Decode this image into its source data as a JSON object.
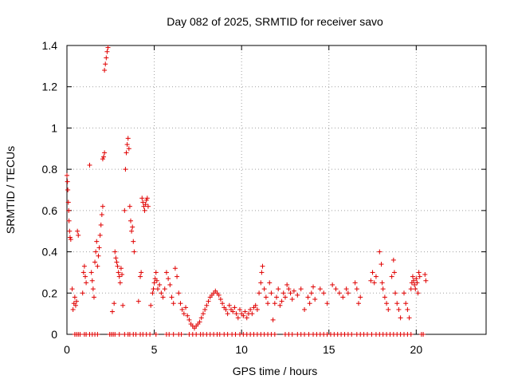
{
  "chart_data": {
    "type": "scatter",
    "title": "Day 082 of 2025, SRMTID for receiver savo",
    "xlabel": "GPS time / hours",
    "ylabel": "SRMTID / TECUs",
    "xlim": [
      0,
      24
    ],
    "ylim": [
      0,
      1.4
    ],
    "xticks": [
      0,
      5,
      10,
      15,
      20
    ],
    "xtick_labels": [
      "0",
      "5",
      "10",
      "15",
      "20"
    ],
    "yticks": [
      0,
      0.2,
      0.4,
      0.6,
      0.8,
      1,
      1.2,
      1.4
    ],
    "ytick_labels": [
      "0",
      "0.2",
      "0.4",
      "0.6",
      "0.8",
      "1",
      "1.2",
      "1.4"
    ],
    "grid": true,
    "marker": "plus",
    "marker_color": "#e00000",
    "series": [
      {
        "name": "SRMTID",
        "points": [
          [
            0.0,
            0.77
          ],
          [
            0.03,
            0.74
          ],
          [
            0.05,
            0.7
          ],
          [
            0.08,
            0.64
          ],
          [
            0.1,
            0.6
          ],
          [
            0.12,
            0.55
          ],
          [
            0.15,
            0.5
          ],
          [
            0.18,
            0.47
          ],
          [
            0.22,
            0.46
          ],
          [
            0.3,
            0.22
          ],
          [
            0.35,
            0.12
          ],
          [
            0.4,
            0.15
          ],
          [
            0.45,
            0.18
          ],
          [
            0.5,
            0.14
          ],
          [
            0.55,
            0.16
          ],
          [
            0.6,
            0.5
          ],
          [
            0.65,
            0.48
          ],
          [
            0.9,
            0.2
          ],
          [
            0.95,
            0.3
          ],
          [
            1.0,
            0.33
          ],
          [
            1.05,
            0.28
          ],
          [
            1.1,
            0.25
          ],
          [
            1.3,
            0.82
          ],
          [
            1.4,
            0.3
          ],
          [
            1.45,
            0.26
          ],
          [
            1.5,
            0.22
          ],
          [
            1.55,
            0.18
          ],
          [
            1.6,
            0.35
          ],
          [
            1.65,
            0.4
          ],
          [
            1.7,
            0.45
          ],
          [
            1.75,
            0.33
          ],
          [
            1.8,
            0.38
          ],
          [
            1.85,
            0.42
          ],
          [
            1.9,
            0.48
          ],
          [
            1.95,
            0.53
          ],
          [
            2.0,
            0.58
          ],
          [
            2.05,
            0.62
          ],
          [
            2.05,
            0.85
          ],
          [
            2.1,
            0.86
          ],
          [
            2.15,
            0.88
          ],
          [
            2.15,
            1.28
          ],
          [
            2.2,
            1.31
          ],
          [
            2.25,
            1.34
          ],
          [
            2.3,
            1.37
          ],
          [
            2.35,
            1.39
          ],
          [
            2.6,
            0.11
          ],
          [
            2.7,
            0.15
          ],
          [
            2.75,
            0.4
          ],
          [
            2.8,
            0.37
          ],
          [
            2.85,
            0.35
          ],
          [
            2.9,
            0.33
          ],
          [
            2.95,
            0.3
          ],
          [
            3.0,
            0.28
          ],
          [
            3.05,
            0.25
          ],
          [
            3.1,
            0.32
          ],
          [
            3.15,
            0.29
          ],
          [
            3.2,
            0.14
          ],
          [
            3.3,
            0.6
          ],
          [
            3.35,
            0.8
          ],
          [
            3.4,
            0.88
          ],
          [
            3.45,
            0.92
          ],
          [
            3.5,
            0.95
          ],
          [
            3.55,
            0.9
          ],
          [
            3.6,
            0.62
          ],
          [
            3.65,
            0.55
          ],
          [
            3.7,
            0.5
          ],
          [
            3.75,
            0.52
          ],
          [
            3.8,
            0.45
          ],
          [
            3.85,
            0.4
          ],
          [
            4.1,
            0.16
          ],
          [
            4.2,
            0.28
          ],
          [
            4.25,
            0.3
          ],
          [
            4.3,
            0.66
          ],
          [
            4.35,
            0.64
          ],
          [
            4.4,
            0.62
          ],
          [
            4.45,
            0.6
          ],
          [
            4.5,
            0.63
          ],
          [
            4.55,
            0.65
          ],
          [
            4.6,
            0.66
          ],
          [
            4.65,
            0.62
          ],
          [
            4.8,
            0.14
          ],
          [
            4.9,
            0.2
          ],
          [
            4.95,
            0.22
          ],
          [
            5.0,
            0.25
          ],
          [
            5.05,
            0.27
          ],
          [
            5.1,
            0.3
          ],
          [
            5.15,
            0.26
          ],
          [
            5.2,
            0.22
          ],
          [
            5.3,
            0.24
          ],
          [
            5.4,
            0.2
          ],
          [
            5.5,
            0.18
          ],
          [
            5.6,
            0.22
          ],
          [
            5.7,
            0.3
          ],
          [
            5.8,
            0.27
          ],
          [
            5.9,
            0.24
          ],
          [
            6.0,
            0.18
          ],
          [
            6.1,
            0.15
          ],
          [
            6.2,
            0.32
          ],
          [
            6.3,
            0.28
          ],
          [
            6.4,
            0.2
          ],
          [
            6.5,
            0.15
          ],
          [
            6.6,
            0.12
          ],
          [
            6.7,
            0.1
          ],
          [
            6.8,
            0.13
          ],
          [
            6.9,
            0.09
          ],
          [
            7.0,
            0.07
          ],
          [
            7.1,
            0.05
          ],
          [
            7.2,
            0.04
          ],
          [
            7.3,
            0.03
          ],
          [
            7.4,
            0.04
          ],
          [
            7.5,
            0.05
          ],
          [
            7.6,
            0.06
          ],
          [
            7.7,
            0.08
          ],
          [
            7.8,
            0.1
          ],
          [
            7.9,
            0.12
          ],
          [
            8.0,
            0.14
          ],
          [
            8.1,
            0.16
          ],
          [
            8.2,
            0.18
          ],
          [
            8.3,
            0.19
          ],
          [
            8.4,
            0.2
          ],
          [
            8.5,
            0.21
          ],
          [
            8.6,
            0.2
          ],
          [
            8.7,
            0.19
          ],
          [
            8.8,
            0.17
          ],
          [
            8.9,
            0.15
          ],
          [
            9.0,
            0.13
          ],
          [
            9.1,
            0.12
          ],
          [
            9.2,
            0.1
          ],
          [
            9.3,
            0.14
          ],
          [
            9.4,
            0.12
          ],
          [
            9.5,
            0.11
          ],
          [
            9.6,
            0.13
          ],
          [
            9.7,
            0.1
          ],
          [
            9.8,
            0.08
          ],
          [
            9.9,
            0.12
          ],
          [
            10.0,
            0.1
          ],
          [
            10.1,
            0.09
          ],
          [
            10.2,
            0.11
          ],
          [
            10.3,
            0.08
          ],
          [
            10.4,
            0.1
          ],
          [
            10.5,
            0.12
          ],
          [
            10.6,
            0.1
          ],
          [
            10.7,
            0.13
          ],
          [
            10.8,
            0.14
          ],
          [
            10.9,
            0.12
          ],
          [
            11.0,
            0.2
          ],
          [
            11.1,
            0.25
          ],
          [
            11.15,
            0.3
          ],
          [
            11.2,
            0.33
          ],
          [
            11.3,
            0.22
          ],
          [
            11.4,
            0.18
          ],
          [
            11.5,
            0.15
          ],
          [
            11.6,
            0.25
          ],
          [
            11.7,
            0.2
          ],
          [
            11.8,
            0.07
          ],
          [
            11.9,
            0.15
          ],
          [
            12.0,
            0.18
          ],
          [
            12.1,
            0.22
          ],
          [
            12.2,
            0.14
          ],
          [
            12.3,
            0.16
          ],
          [
            12.4,
            0.2
          ],
          [
            12.5,
            0.18
          ],
          [
            12.6,
            0.24
          ],
          [
            12.7,
            0.22
          ],
          [
            12.8,
            0.2
          ],
          [
            12.9,
            0.17
          ],
          [
            13.0,
            0.21
          ],
          [
            13.2,
            0.19
          ],
          [
            13.4,
            0.22
          ],
          [
            13.6,
            0.12
          ],
          [
            13.8,
            0.18
          ],
          [
            13.9,
            0.15
          ],
          [
            14.0,
            0.2
          ],
          [
            14.1,
            0.23
          ],
          [
            14.2,
            0.17
          ],
          [
            14.5,
            0.22
          ],
          [
            14.7,
            0.2
          ],
          [
            14.9,
            0.15
          ],
          [
            15.2,
            0.24
          ],
          [
            15.4,
            0.22
          ],
          [
            15.6,
            0.2
          ],
          [
            15.8,
            0.18
          ],
          [
            16.0,
            0.22
          ],
          [
            16.1,
            0.2
          ],
          [
            16.5,
            0.25
          ],
          [
            16.6,
            0.22
          ],
          [
            16.7,
            0.15
          ],
          [
            16.8,
            0.18
          ],
          [
            17.4,
            0.26
          ],
          [
            17.5,
            0.3
          ],
          [
            17.6,
            0.25
          ],
          [
            17.7,
            0.28
          ],
          [
            17.9,
            0.4
          ],
          [
            18.0,
            0.34
          ],
          [
            18.05,
            0.25
          ],
          [
            18.1,
            0.22
          ],
          [
            18.2,
            0.18
          ],
          [
            18.3,
            0.15
          ],
          [
            18.4,
            0.12
          ],
          [
            18.6,
            0.28
          ],
          [
            18.7,
            0.36
          ],
          [
            18.75,
            0.3
          ],
          [
            18.8,
            0.2
          ],
          [
            18.9,
            0.15
          ],
          [
            19.0,
            0.12
          ],
          [
            19.1,
            0.08
          ],
          [
            19.3,
            0.2
          ],
          [
            19.4,
            0.15
          ],
          [
            19.5,
            0.12
          ],
          [
            19.6,
            0.08
          ],
          [
            19.7,
            0.22
          ],
          [
            19.75,
            0.25
          ],
          [
            19.8,
            0.28
          ],
          [
            19.85,
            0.26
          ],
          [
            19.9,
            0.24
          ],
          [
            19.95,
            0.22
          ],
          [
            20.0,
            0.27
          ],
          [
            20.05,
            0.25
          ],
          [
            20.1,
            0.2
          ],
          [
            20.15,
            0.3
          ],
          [
            20.2,
            0.28
          ],
          [
            20.5,
            0.29
          ],
          [
            20.55,
            0.26
          ],
          [
            0.45,
            0
          ],
          [
            0.55,
            0
          ],
          [
            0.65,
            0
          ],
          [
            0.75,
            0
          ],
          [
            1.0,
            0
          ],
          [
            1.1,
            0
          ],
          [
            1.3,
            0
          ],
          [
            1.45,
            0
          ],
          [
            1.6,
            0
          ],
          [
            1.75,
            0
          ],
          [
            2.45,
            0
          ],
          [
            2.55,
            0
          ],
          [
            2.65,
            0
          ],
          [
            2.75,
            0
          ],
          [
            3.0,
            0
          ],
          [
            3.3,
            0
          ],
          [
            3.5,
            0
          ],
          [
            3.6,
            0
          ],
          [
            3.8,
            0
          ],
          [
            3.95,
            0
          ],
          [
            4.2,
            0
          ],
          [
            4.35,
            0
          ],
          [
            4.55,
            0
          ],
          [
            4.75,
            0
          ],
          [
            5.1,
            0
          ],
          [
            5.7,
            0
          ],
          [
            5.85,
            0
          ],
          [
            6.1,
            0
          ],
          [
            6.4,
            0
          ],
          [
            6.55,
            0
          ],
          [
            7.0,
            0
          ],
          [
            7.2,
            0
          ],
          [
            7.4,
            0
          ],
          [
            7.65,
            0
          ],
          [
            7.8,
            0
          ],
          [
            8.0,
            0
          ],
          [
            8.2,
            0
          ],
          [
            8.4,
            0
          ],
          [
            8.6,
            0
          ],
          [
            8.75,
            0
          ],
          [
            9.0,
            0
          ],
          [
            9.2,
            0
          ],
          [
            9.45,
            0
          ],
          [
            9.65,
            0
          ],
          [
            9.9,
            0
          ],
          [
            10.1,
            0
          ],
          [
            10.3,
            0
          ],
          [
            10.5,
            0
          ],
          [
            10.7,
            0
          ],
          [
            10.9,
            0
          ],
          [
            11.1,
            0
          ],
          [
            11.3,
            0
          ],
          [
            11.5,
            0
          ],
          [
            11.7,
            0
          ],
          [
            11.9,
            0
          ],
          [
            12.5,
            0
          ],
          [
            12.7,
            0
          ],
          [
            12.9,
            0
          ],
          [
            13.2,
            0
          ],
          [
            13.4,
            0
          ],
          [
            13.6,
            0
          ],
          [
            13.85,
            0
          ],
          [
            14.1,
            0
          ],
          [
            14.3,
            0
          ],
          [
            14.5,
            0
          ],
          [
            14.7,
            0
          ],
          [
            14.9,
            0
          ],
          [
            15.1,
            0
          ],
          [
            15.3,
            0
          ],
          [
            15.5,
            0
          ],
          [
            15.7,
            0
          ],
          [
            15.9,
            0
          ],
          [
            16.1,
            0
          ],
          [
            16.3,
            0
          ],
          [
            16.6,
            0
          ],
          [
            16.8,
            0
          ],
          [
            17.0,
            0
          ],
          [
            17.2,
            0
          ],
          [
            17.45,
            0
          ],
          [
            17.7,
            0
          ],
          [
            17.9,
            0
          ],
          [
            18.1,
            0
          ],
          [
            18.3,
            0
          ],
          [
            18.5,
            0
          ],
          [
            18.7,
            0
          ],
          [
            18.9,
            0
          ],
          [
            19.1,
            0
          ],
          [
            19.3,
            0
          ],
          [
            19.5,
            0
          ],
          [
            19.7,
            0
          ],
          [
            20.3,
            0
          ],
          [
            20.4,
            0
          ]
        ]
      }
    ]
  }
}
